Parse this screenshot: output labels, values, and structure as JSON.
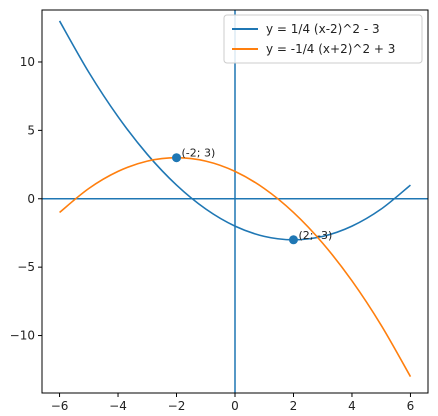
{
  "chart_data": {
    "type": "line",
    "title": "",
    "xlabel": "",
    "ylabel": "",
    "xlim": [
      -6.6,
      6.6
    ],
    "ylim": [
      -14.2,
      13.8
    ],
    "xticks": [
      -6,
      -4,
      -2,
      0,
      2,
      4,
      6
    ],
    "xtick_labels": [
      "−6",
      "−4",
      "−2",
      "0",
      "2",
      "4",
      "6"
    ],
    "yticks": [
      10,
      5,
      0,
      -5,
      -10
    ],
    "ytick_labels": [
      "10",
      "5",
      "0",
      "−5",
      "−10"
    ],
    "grid": false,
    "legend_position": "top-right",
    "axis_lines": {
      "x0": 0,
      "y0": 0,
      "color": "#1f77b4"
    },
    "series": [
      {
        "name": "y = 1/4 (x-2)^2 - 3",
        "color": "#1f77b4",
        "x": [
          -6,
          -5,
          -4,
          -3,
          -2,
          -1,
          0,
          1,
          2,
          3,
          4,
          5,
          6
        ],
        "y": [
          13,
          9.25,
          6,
          3.25,
          1,
          -0.75,
          -2,
          -2.75,
          -3,
          -2.75,
          -2,
          -0.75,
          1
        ]
      },
      {
        "name": "y = -1/4 (x+2)^2 + 3",
        "color": "#ff7f0e",
        "x": [
          -6,
          -5,
          -4,
          -3,
          -2,
          -1,
          0,
          1,
          2,
          3,
          4,
          5,
          6
        ],
        "y": [
          -1,
          0.75,
          2,
          2.75,
          3,
          2.75,
          2,
          0.75,
          -1,
          -3.25,
          -6,
          -9.25,
          -13
        ]
      }
    ],
    "points": [
      {
        "x": -2,
        "y": 3,
        "label": "(-2; 3)",
        "color": "#1f77b4"
      },
      {
        "x": 2,
        "y": -3,
        "label": "(2; -3)",
        "color": "#1f77b4"
      }
    ]
  }
}
